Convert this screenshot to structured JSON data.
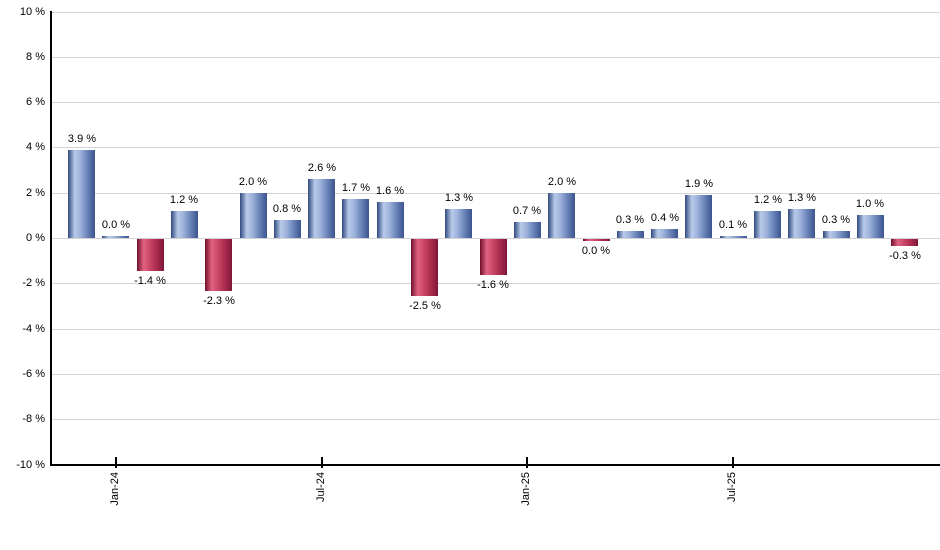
{
  "chart_data": {
    "type": "bar",
    "title": "",
    "xlabel": "",
    "ylabel": "",
    "ylim": [
      -10,
      10
    ],
    "grid": true,
    "legend": false,
    "background": "#ffffff",
    "y_ticks": [
      {
        "value": 10,
        "label": "10 %"
      },
      {
        "value": 8,
        "label": "8 %"
      },
      {
        "value": 6,
        "label": "6 %"
      },
      {
        "value": 4,
        "label": "4 %"
      },
      {
        "value": 2,
        "label": "2 %"
      },
      {
        "value": 0,
        "label": "0 %"
      },
      {
        "value": -2,
        "label": "-2 %"
      },
      {
        "value": -4,
        "label": "-4 %"
      },
      {
        "value": -6,
        "label": "-6 %"
      },
      {
        "value": -8,
        "label": "-8 %"
      },
      {
        "value": -10,
        "label": "-10 %"
      }
    ],
    "x_ticks": [
      {
        "label": "Jan-24",
        "bar_index": 1
      },
      {
        "label": "Jul-24",
        "bar_index": 7
      },
      {
        "label": "Jan-25",
        "bar_index": 13
      },
      {
        "label": "Jul-25",
        "bar_index": 19
      }
    ],
    "bars": [
      {
        "value": 3.9,
        "label": "3.9 %",
        "direction": "up"
      },
      {
        "value": 0.0,
        "label": "0.0 %",
        "direction": "up"
      },
      {
        "value": -1.4,
        "label": "-1.4 %",
        "direction": "down"
      },
      {
        "value": 1.2,
        "label": "1.2 %",
        "direction": "up"
      },
      {
        "value": -2.3,
        "label": "-2.3 %",
        "direction": "down"
      },
      {
        "value": 2.0,
        "label": "2.0 %",
        "direction": "up"
      },
      {
        "value": 0.8,
        "label": "0.8 %",
        "direction": "up"
      },
      {
        "value": 2.6,
        "label": "2.6 %",
        "direction": "up"
      },
      {
        "value": 1.7,
        "label": "1.7 %",
        "direction": "up"
      },
      {
        "value": 1.6,
        "label": "1.6 %",
        "direction": "up"
      },
      {
        "value": -2.5,
        "label": "-2.5 %",
        "direction": "down"
      },
      {
        "value": 1.3,
        "label": "1.3 %",
        "direction": "up"
      },
      {
        "value": -1.6,
        "label": "-1.6 %",
        "direction": "down"
      },
      {
        "value": 0.7,
        "label": "0.7 %",
        "direction": "up"
      },
      {
        "value": 2.0,
        "label": "2.0 %",
        "direction": "up"
      },
      {
        "value": 0.0,
        "label": "0.0 %",
        "direction": "down"
      },
      {
        "value": 0.3,
        "label": "0.3 %",
        "direction": "up"
      },
      {
        "value": 0.4,
        "label": "0.4 %",
        "direction": "up"
      },
      {
        "value": 1.9,
        "label": "1.9 %",
        "direction": "up"
      },
      {
        "value": 0.1,
        "label": "0.1 %",
        "direction": "up"
      },
      {
        "value": 1.2,
        "label": "1.2 %",
        "direction": "up"
      },
      {
        "value": 1.3,
        "label": "1.3 %",
        "direction": "up"
      },
      {
        "value": 0.3,
        "label": "0.3 %",
        "direction": "up"
      },
      {
        "value": 1.0,
        "label": "1.0 %",
        "direction": "up"
      },
      {
        "value": -0.3,
        "label": "-0.3 %",
        "direction": "down"
      }
    ],
    "colors": {
      "positive_bar_edge": "#30497f",
      "positive_bar_highlight": "#b8cae9",
      "negative_bar_edge": "#701029",
      "negative_bar_highlight": "#e06282",
      "gridline": "#d3d3d3",
      "axis": "#000000",
      "label_text": "#000000"
    }
  }
}
